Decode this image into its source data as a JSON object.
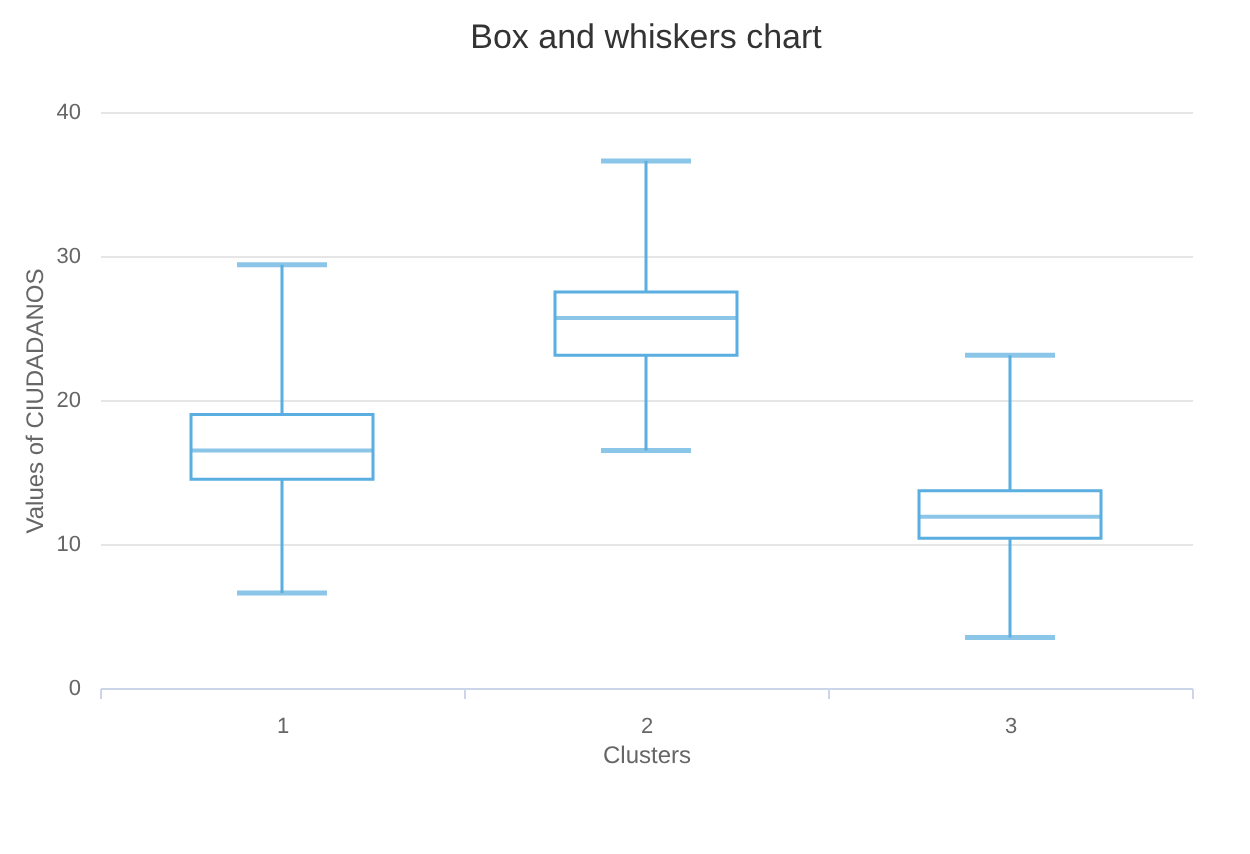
{
  "chart_data": {
    "type": "box",
    "title": "Box and whiskers chart",
    "xlabel": "Clusters",
    "ylabel": "Values of CIUDADANOS",
    "categories": [
      "1",
      "2",
      "3"
    ],
    "series": [
      {
        "color": "#5aaee0",
        "boxes": [
          {
            "low": 6.6,
            "q1": 14.5,
            "median": 16.5,
            "q3": 19.0,
            "high": 29.4
          },
          {
            "low": 16.5,
            "q1": 23.1,
            "median": 25.7,
            "q3": 27.5,
            "high": 36.6
          },
          {
            "low": 3.5,
            "q1": 10.4,
            "median": 11.9,
            "q3": 13.7,
            "high": 23.1
          }
        ]
      }
    ],
    "ylim": [
      0,
      40
    ],
    "yticks": [
      0,
      10,
      20,
      30,
      40
    ],
    "grid": "y"
  }
}
